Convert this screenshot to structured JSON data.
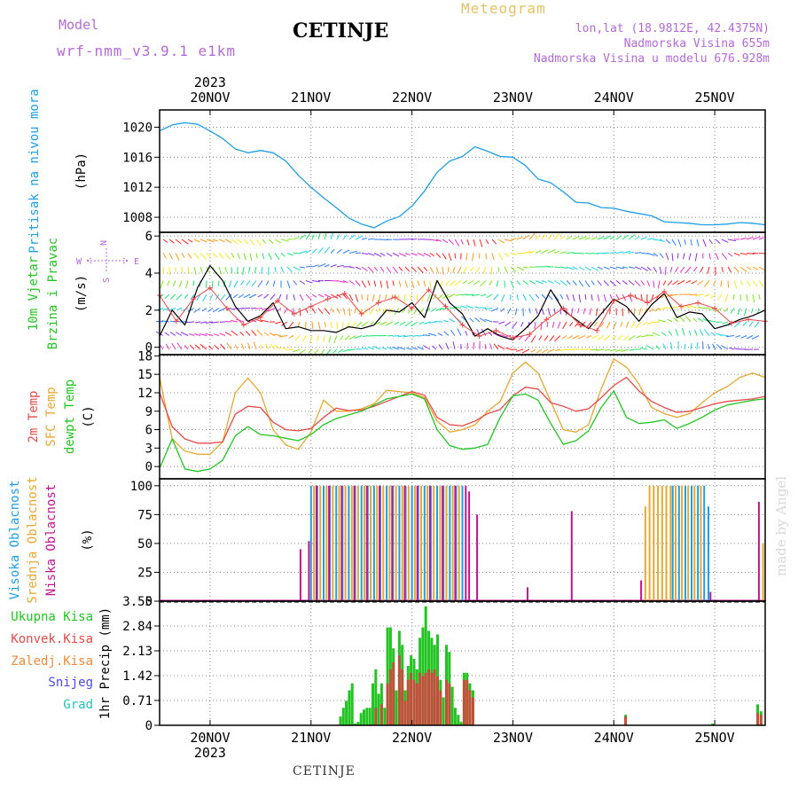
{
  "header": {
    "model_label": "Model",
    "model_name": "wrf-nmm_v3.9.1 e1km",
    "title": "CETINJE",
    "meteogram": "Meteogram",
    "lonlat": "lon,lat (18.9812E, 42.4375N)",
    "elevation": "Nadmorska Visina 655m",
    "model_elevation": "Nadmorska Visina u modelu 676.928m"
  },
  "footer": "CETINJE",
  "watermark": "made by Angel",
  "year_top": "2023",
  "year_bottom": "2023",
  "colors": {
    "pressure": "#1e9ee6",
    "temp2m": "#e84a4a",
    "sfctemp": "#e6a830",
    "dewpt": "#22c422",
    "precip_total": "#22c422",
    "precip_conv": "#c0503a",
    "cloud_high": "#1e9ee6",
    "cloud_mid": "#e6a830",
    "cloud_low": "#c0148c",
    "label_purple": "#b36ad8",
    "grid": "#888888"
  },
  "chart_data": [
    {
      "type": "line",
      "panel": "pressure",
      "ylabel_1": "Pritisak na nivou mora",
      "ylabel_2": "(hPa)",
      "x_labels": [
        "20NOV",
        "21NOV",
        "22NOV",
        "23NOV",
        "24NOV",
        "25NOV"
      ],
      "yticks": [
        1008,
        1012,
        1016,
        1020
      ],
      "ylim": [
        1006,
        1022.3
      ],
      "xlim": [
        0,
        144
      ],
      "x": [
        0,
        3,
        6,
        9,
        12,
        15,
        18,
        21,
        24,
        27,
        30,
        33,
        36,
        39,
        42,
        45,
        48,
        51,
        54,
        57,
        60,
        63,
        66,
        69,
        72,
        75,
        78,
        81,
        84,
        87,
        90,
        93,
        96,
        99,
        102,
        105,
        108,
        111,
        114,
        117,
        120,
        123,
        126,
        129,
        132,
        135,
        138,
        141,
        144
      ],
      "y": [
        1019.5,
        1020.3,
        1020.6,
        1020.4,
        1019.5,
        1018.5,
        1017.1,
        1016.6,
        1016.9,
        1016.6,
        1015.5,
        1013.6,
        1012.0,
        1010.6,
        1009.3,
        1007.9,
        1007.1,
        1006.6,
        1007.5,
        1008.1,
        1009.5,
        1011.5,
        1014.0,
        1015.5,
        1016.1,
        1017.4,
        1016.8,
        1016.1,
        1016.0,
        1014.9,
        1013.1,
        1012.6,
        1011.4,
        1010.0,
        1009.9,
        1009.3,
        1009.2,
        1008.8,
        1008.5,
        1008.2,
        1007.4,
        1007.3,
        1007.2,
        1007.0,
        1007.0,
        1007.1,
        1007.3,
        1007.2,
        1007.0
      ]
    },
    {
      "type": "line",
      "panel": "wind",
      "ylabel_1": "10m Vjetar",
      "ylabel_2": "Brzina i Pravac",
      "ylabel_3": "(m/s)",
      "compass": {
        "n": "N",
        "s": "S",
        "w": "W",
        "e": "E"
      },
      "yticks": [
        0,
        2,
        4,
        6
      ],
      "ylim": [
        -0.4,
        6.2
      ],
      "xlim": [
        0,
        144
      ],
      "series": [
        {
          "name": "speed",
          "x": [
            0,
            3,
            6,
            9,
            12,
            15,
            18,
            21,
            24,
            27,
            30,
            33,
            36,
            39,
            42,
            45,
            48,
            51,
            54,
            57,
            60,
            63,
            66,
            69,
            72,
            75,
            78,
            81,
            84,
            87,
            90,
            93,
            96,
            99,
            102,
            105,
            108,
            111,
            114,
            117,
            120,
            123,
            126,
            129,
            132,
            135,
            138,
            141,
            144
          ],
          "y": [
            0.6,
            2.0,
            1.2,
            3.2,
            4.4,
            3.6,
            2.2,
            1.4,
            1.7,
            2.4,
            1.0,
            1.1,
            0.9,
            0.9,
            0.8,
            1.1,
            1.0,
            1.2,
            2.0,
            1.9,
            2.4,
            1.6,
            3.6,
            2.4,
            1.8,
            0.6,
            1.0,
            0.6,
            0.4,
            1.0,
            1.7,
            3.1,
            2.0,
            1.5,
            1.0,
            1.8,
            2.6,
            2.2,
            1.4,
            2.3,
            2.9,
            1.6,
            1.9,
            1.8,
            1.0,
            1.2,
            1.5,
            1.7,
            2.0
          ]
        },
        {
          "name": "gust",
          "x": [
            0,
            4,
            8,
            12,
            16,
            20,
            24,
            28,
            32,
            36,
            40,
            44,
            48,
            52,
            56,
            60,
            64,
            68,
            72,
            76,
            80,
            84,
            88,
            92,
            96,
            100,
            104,
            108,
            112,
            116,
            120,
            124,
            128,
            132,
            136,
            140,
            144
          ],
          "y": [
            2.8,
            1.4,
            2.6,
            3.2,
            2.1,
            1.2,
            1.6,
            2.5,
            1.8,
            2.2,
            2.6,
            2.9,
            1.8,
            2.4,
            2.7,
            2.1,
            3.1,
            2.2,
            1.2,
            0.6,
            0.9,
            0.5,
            0.7,
            1.5,
            2.1,
            1.2,
            0.9,
            2.5,
            2.8,
            2.4,
            3.0,
            2.2,
            2.4,
            2.1,
            1.3,
            1.5,
            1.4
          ]
        }
      ]
    },
    {
      "type": "line",
      "panel": "temperature",
      "ylabel_1": "2m Temp",
      "ylabel_2": "SFC Temp",
      "ylabel_3": "dewpt Temp",
      "ylabel_4": "(C)",
      "yticks": [
        0,
        3,
        6,
        9,
        12,
        15,
        18
      ],
      "ylim": [
        -2,
        18.2
      ],
      "xlim": [
        0,
        144
      ],
      "series": [
        {
          "name": "2m Temp",
          "x": [
            0,
            3,
            6,
            9,
            12,
            15,
            18,
            21,
            24,
            27,
            30,
            33,
            36,
            39,
            42,
            45,
            48,
            51,
            54,
            57,
            60,
            63,
            66,
            69,
            72,
            75,
            78,
            81,
            84,
            87,
            90,
            93,
            96,
            99,
            102,
            105,
            108,
            111,
            114,
            117,
            120,
            123,
            126,
            129,
            132,
            135,
            138,
            141,
            144
          ],
          "y": [
            12.0,
            6.5,
            4.5,
            3.8,
            3.8,
            4.0,
            8.5,
            9.8,
            9.6,
            7.2,
            6.0,
            5.8,
            6.2,
            8.0,
            9.5,
            9.1,
            9.2,
            9.8,
            10.6,
            11.4,
            12.2,
            11.6,
            8.0,
            6.8,
            6.6,
            7.4,
            8.6,
            9.3,
            11.5,
            12.9,
            12.6,
            10.4,
            9.8,
            9.0,
            9.4,
            11.2,
            13.2,
            14.5,
            12.3,
            10.6,
            9.6,
            8.8,
            9.0,
            9.6,
            10.2,
            10.6,
            10.8,
            11.0,
            11.4
          ]
        },
        {
          "name": "SFC Temp",
          "x": [
            0,
            3,
            6,
            9,
            12,
            15,
            18,
            21,
            24,
            27,
            30,
            33,
            36,
            39,
            42,
            45,
            48,
            51,
            54,
            57,
            60,
            63,
            66,
            69,
            72,
            75,
            78,
            81,
            84,
            87,
            90,
            93,
            96,
            99,
            102,
            105,
            108,
            111,
            114,
            117,
            120,
            123,
            126,
            129,
            132,
            135,
            138,
            141,
            144
          ],
          "y": [
            14.5,
            4.5,
            2.5,
            2.0,
            2.0,
            4.0,
            12.0,
            14.4,
            12.0,
            6.0,
            3.5,
            2.8,
            5.6,
            10.8,
            9.0,
            9.0,
            9.4,
            10.2,
            12.4,
            12.2,
            12.0,
            11.2,
            7.4,
            5.6,
            6.0,
            6.8,
            9.0,
            10.6,
            15.2,
            17.0,
            15.2,
            10.6,
            6.0,
            5.6,
            6.8,
            12.6,
            17.5,
            16.2,
            13.4,
            9.6,
            8.6,
            8.0,
            8.6,
            10.4,
            12.0,
            13.0,
            14.5,
            15.2,
            14.5
          ]
        },
        {
          "name": "dewpt Temp",
          "x": [
            0,
            3,
            6,
            9,
            12,
            15,
            18,
            21,
            24,
            27,
            30,
            33,
            36,
            39,
            42,
            45,
            48,
            51,
            54,
            57,
            60,
            63,
            66,
            69,
            72,
            75,
            78,
            81,
            84,
            87,
            90,
            93,
            96,
            99,
            102,
            105,
            108,
            111,
            114,
            117,
            120,
            123,
            126,
            129,
            132,
            135,
            138,
            141,
            144
          ],
          "y": [
            -0.3,
            4.5,
            -0.4,
            -0.8,
            -0.4,
            1.0,
            5.0,
            6.5,
            5.2,
            5.0,
            4.6,
            4.2,
            5.2,
            6.8,
            7.8,
            8.4,
            9.0,
            10.0,
            11.0,
            11.4,
            11.8,
            11.0,
            6.0,
            3.4,
            2.8,
            3.0,
            3.6,
            8.0,
            11.5,
            11.8,
            10.8,
            7.0,
            3.6,
            4.2,
            5.8,
            9.6,
            12.3,
            8.0,
            7.0,
            7.2,
            7.6,
            6.2,
            7.0,
            8.0,
            9.2,
            10.0,
            10.4,
            10.8,
            11.0
          ]
        }
      ]
    },
    {
      "type": "bar",
      "panel": "clouds",
      "ylabel_1": "Visoka Oblacnost",
      "ylabel_2": "Srednja Oblacnost",
      "ylabel_3": "Niska Oblacnost",
      "ylabel_4": "(%)",
      "yticks": [
        0,
        25,
        50,
        75,
        100
      ],
      "ylim": [
        0,
        106
      ],
      "xlim": [
        0,
        144
      ],
      "series": [
        {
          "name": "Visoka Oblacnost",
          "x": [
            36,
            37.5,
            39,
            40.5,
            42,
            43.5,
            45,
            46.5,
            48,
            49.5,
            51,
            52.5,
            54,
            55.5,
            57,
            58.5,
            60,
            61.5,
            63,
            64.5,
            66,
            67.5,
            69,
            70.5,
            72,
            122,
            123.5,
            125,
            126.5,
            128,
            129.5,
            130.5
          ],
          "y": [
            100,
            100,
            100,
            100,
            100,
            100,
            100,
            100,
            100,
            100,
            100,
            100,
            100,
            100,
            100,
            100,
            100,
            100,
            100,
            100,
            100,
            100,
            100,
            100,
            100,
            100,
            100,
            100,
            100,
            100,
            100,
            82
          ]
        },
        {
          "name": "Srednja Oblacnost",
          "x": [
            36.7,
            38.2,
            39.7,
            41.2,
            42.7,
            44.2,
            45.7,
            47.2,
            48.7,
            50.2,
            51.7,
            53.2,
            54.7,
            56.2,
            57.7,
            59.2,
            60.7,
            62.2,
            63.7,
            65.2,
            66.7,
            68.2,
            69.7,
            71.2,
            115.5,
            116.5,
            117.5,
            118.5,
            119.5,
            120.5,
            121.5,
            122.7,
            124.2,
            125.7,
            127.2,
            128.7,
            143.5
          ],
          "y": [
            100,
            100,
            100,
            100,
            100,
            100,
            100,
            100,
            100,
            100,
            100,
            100,
            100,
            100,
            100,
            100,
            100,
            100,
            100,
            100,
            100,
            100,
            100,
            100,
            82,
            100,
            100,
            100,
            100,
            100,
            100,
            100,
            100,
            100,
            100,
            100,
            50
          ]
        },
        {
          "name": "Niska Oblacnost",
          "x": [
            33.5,
            35.5,
            37.3,
            40.3,
            43.3,
            46.3,
            49.3,
            52.3,
            55.3,
            58.3,
            61.3,
            64.3,
            67.3,
            70.3,
            72.8,
            73.6,
            75.5,
            87.5,
            98,
            114.5,
            131,
            142.5
          ],
          "y": [
            45,
            52,
            100,
            100,
            100,
            100,
            100,
            100,
            100,
            100,
            100,
            100,
            100,
            100,
            100,
            95,
            75,
            12,
            78,
            18,
            8,
            86
          ]
        }
      ]
    },
    {
      "type": "bar",
      "panel": "precip",
      "ylabel": "1hr Precip (mm)",
      "legend": [
        "Ukupna Kisa",
        "Konvek.Kisa",
        "Zaledj.Kisa",
        "Snijeg",
        "Grad"
      ],
      "yticks_labels": [
        "0",
        "0.71",
        "1.42",
        "2.13",
        "2.84",
        "3.55"
      ],
      "yticks": [
        0,
        0.71,
        1.42,
        2.13,
        2.84,
        3.55
      ],
      "ylim": [
        0,
        3.55
      ],
      "xlim": [
        0,
        144
      ],
      "x_labels": [
        "20NOV",
        "21NOV",
        "22NOV",
        "23NOV",
        "24NOV",
        "25NOV"
      ],
      "series": [
        {
          "name": "Ukupna Kisa",
          "x": [
            43,
            43.7,
            44.4,
            45.1,
            45.8,
            46.5,
            47.2,
            47.9,
            48.6,
            49.3,
            50,
            50.7,
            51.4,
            52.1,
            52.8,
            53.5,
            54.2,
            54.9,
            55.6,
            56.3,
            57,
            57.7,
            58.4,
            59.1,
            59.8,
            60.5,
            61.2,
            61.9,
            62.6,
            63.3,
            64,
            64.7,
            65.4,
            66.1,
            66.8,
            67.5,
            68.2,
            68.9,
            69.6,
            70.3,
            71,
            71.7,
            72.4,
            73.1,
            73.8,
            74.5,
            110.8,
            131.5,
            142.2,
            143
          ],
          "y": [
            0.25,
            0.5,
            0.7,
            1.0,
            1.2,
            0.05,
            0.1,
            0.35,
            0.45,
            0.5,
            0.5,
            1.2,
            1.6,
            0.9,
            1.2,
            0.5,
            2.8,
            2.8,
            2.2,
            1.0,
            2.7,
            2.3,
            1.0,
            1.7,
            2.0,
            1.9,
            1.6,
            2.5,
            2.8,
            3.4,
            2.7,
            2.5,
            2.3,
            2.6,
            1.3,
            0.8,
            2.3,
            2.1,
            1.1,
            0.5,
            0.3,
            0.1,
            1.5,
            1.5,
            1.2,
            1.0,
            0.3,
            0.05,
            0.6,
            0.4
          ]
        },
        {
          "name": "Konvek.Kisa",
          "x": [
            51.4,
            52.8,
            54.2,
            54.9,
            55.6,
            57,
            57.7,
            58.4,
            59.1,
            59.8,
            60.5,
            61.2,
            61.9,
            62.6,
            63.3,
            64,
            64.7,
            65.4,
            66.1,
            66.8,
            68.2,
            68.9,
            72.4,
            73.1,
            73.8,
            74.5,
            110.8,
            142.2,
            143
          ],
          "y": [
            0.5,
            0.6,
            1.2,
            1.6,
            1.8,
            2.0,
            1.6,
            0.7,
            1.3,
            1.5,
            1.3,
            1.2,
            1.5,
            1.4,
            1.5,
            1.6,
            1.5,
            1.6,
            1.4,
            1.0,
            1.3,
            1.2,
            1.3,
            1.3,
            1.0,
            0.8,
            0.25,
            0.35,
            0.3
          ]
        }
      ]
    }
  ]
}
